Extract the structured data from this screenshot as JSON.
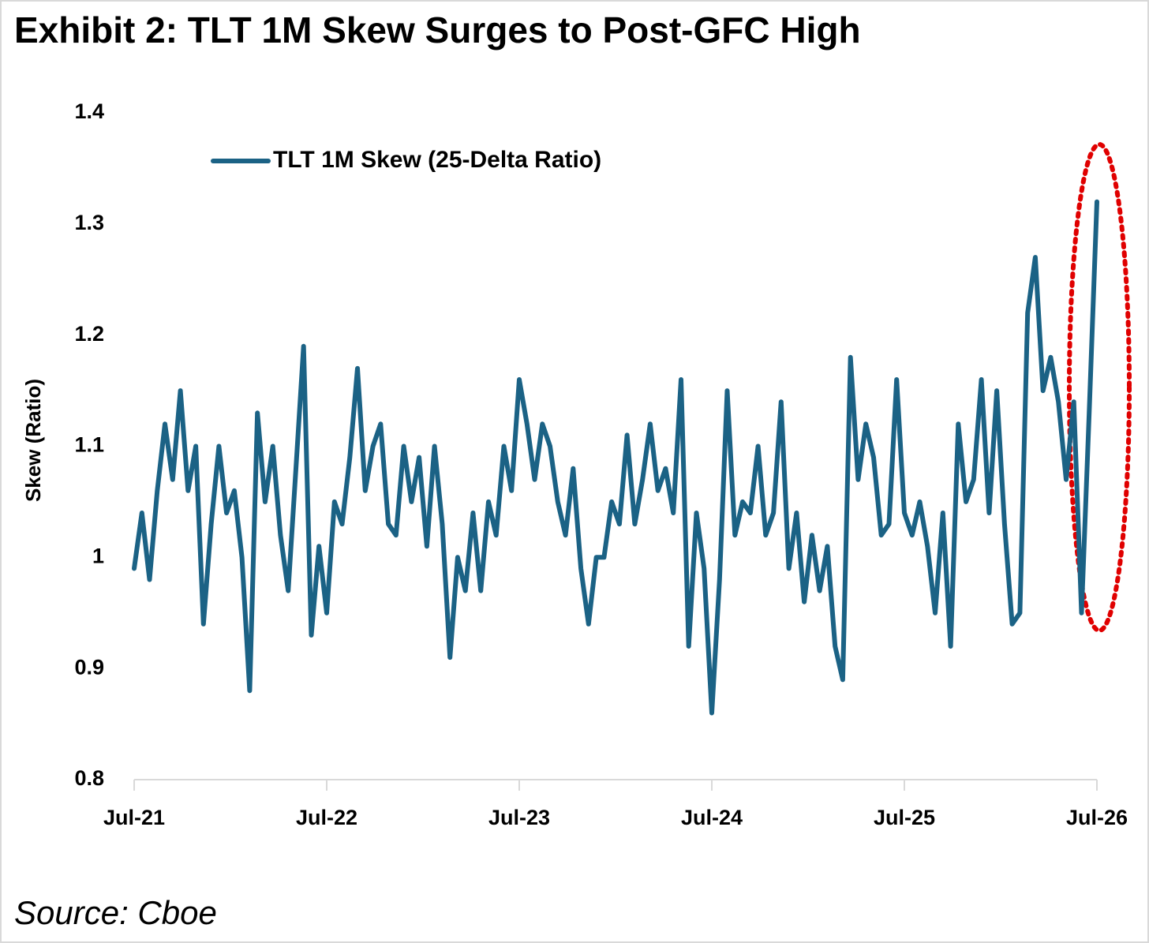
{
  "chart_data": {
    "type": "line",
    "title": "Exhibit 2: TLT 1M Skew Surges to Post-GFC High",
    "ylabel": "Skew (Ratio)",
    "source": "Source: Cboe",
    "legend": "upper left",
    "grid": false,
    "xlim": [
      2021.5,
      2026.5
    ],
    "xticks": [
      {
        "value": 2021.5,
        "label": "Jul-21"
      },
      {
        "value": 2022.5,
        "label": "Jul-22"
      },
      {
        "value": 2023.5,
        "label": "Jul-23"
      },
      {
        "value": 2024.5,
        "label": "Jul-24"
      },
      {
        "value": 2025.5,
        "label": "Jul-25"
      },
      {
        "value": 2026.5,
        "label": "Jul-26"
      }
    ],
    "ylim": [
      0.8,
      1.4
    ],
    "yticks": [
      0.8,
      0.9,
      1,
      1.1,
      1.2,
      1.3,
      1.4
    ],
    "x": [
      2021.5,
      2021.54,
      2021.58,
      2021.62,
      2021.66,
      2021.7,
      2021.74,
      2021.78,
      2021.82,
      2021.86,
      2021.9,
      2021.94,
      2021.98,
      2022.02,
      2022.06,
      2022.1,
      2022.14,
      2022.18,
      2022.22,
      2022.26,
      2022.3,
      2022.34,
      2022.38,
      2022.42,
      2022.46,
      2022.5,
      2022.54,
      2022.58,
      2022.62,
      2022.66,
      2022.7,
      2022.74,
      2022.78,
      2022.82,
      2022.86,
      2022.9,
      2022.94,
      2022.98,
      2023.02,
      2023.06,
      2023.1,
      2023.14,
      2023.18,
      2023.22,
      2023.26,
      2023.3,
      2023.34,
      2023.38,
      2023.42,
      2023.46,
      2023.5,
      2023.54,
      2023.58,
      2023.62,
      2023.66,
      2023.7,
      2023.74,
      2023.78,
      2023.82,
      2023.86,
      2023.9,
      2023.94,
      2023.98,
      2024.02,
      2024.06,
      2024.1,
      2024.14,
      2024.18,
      2024.22,
      2024.26,
      2024.3,
      2024.34,
      2024.38,
      2024.42,
      2024.46,
      2024.5,
      2024.54,
      2024.58,
      2024.62,
      2024.66,
      2024.7,
      2024.74,
      2024.78,
      2024.82,
      2024.86,
      2024.9,
      2024.94,
      2024.98,
      2025.02,
      2025.06,
      2025.1,
      2025.14,
      2025.18,
      2025.22,
      2025.26,
      2025.3,
      2025.34,
      2025.38,
      2025.42,
      2025.46,
      2025.5,
      2025.54,
      2025.58,
      2025.62,
      2025.66,
      2025.7,
      2025.74,
      2025.78,
      2025.82,
      2025.86,
      2025.9,
      2025.94,
      2025.98,
      2026.02,
      2026.06,
      2026.1,
      2026.14,
      2026.18,
      2026.22,
      2026.26,
      2026.3,
      2026.34,
      2026.38,
      2026.42,
      2026.46,
      2026.5
    ],
    "series": [
      {
        "name": "TLT 1M Skew (25-Delta Ratio)",
        "color": "#1b6285",
        "values": [
          0.99,
          1.04,
          0.98,
          1.06,
          1.12,
          1.07,
          1.15,
          1.06,
          1.1,
          0.94,
          1.03,
          1.1,
          1.04,
          1.06,
          1.0,
          0.88,
          1.13,
          1.05,
          1.1,
          1.02,
          0.97,
          1.08,
          1.19,
          0.93,
          1.01,
          0.95,
          1.05,
          1.03,
          1.09,
          1.17,
          1.06,
          1.1,
          1.12,
          1.03,
          1.02,
          1.1,
          1.05,
          1.09,
          1.01,
          1.1,
          1.03,
          0.91,
          1.0,
          0.97,
          1.04,
          0.97,
          1.05,
          1.02,
          1.1,
          1.06,
          1.16,
          1.12,
          1.07,
          1.12,
          1.1,
          1.05,
          1.02,
          1.08,
          0.99,
          0.94,
          1.0,
          1.0,
          1.05,
          1.03,
          1.11,
          1.03,
          1.07,
          1.12,
          1.06,
          1.08,
          1.04,
          1.16,
          0.92,
          1.04,
          0.99,
          0.86,
          0.98,
          1.15,
          1.02,
          1.05,
          1.04,
          1.1,
          1.02,
          1.04,
          1.14,
          0.99,
          1.04,
          0.96,
          1.02,
          0.97,
          1.01,
          0.92,
          0.89,
          1.18,
          1.07,
          1.12,
          1.09,
          1.02,
          1.03,
          1.16,
          1.04,
          1.02,
          1.05,
          1.01,
          0.95,
          1.04,
          0.92,
          1.12,
          1.05,
          1.07,
          1.16,
          1.04,
          1.15,
          1.03,
          0.94,
          0.95,
          1.22,
          1.27,
          1.15,
          1.18,
          1.14,
          1.07,
          1.14,
          0.95,
          1.13,
          1.32
        ]
      }
    ]
  }
}
